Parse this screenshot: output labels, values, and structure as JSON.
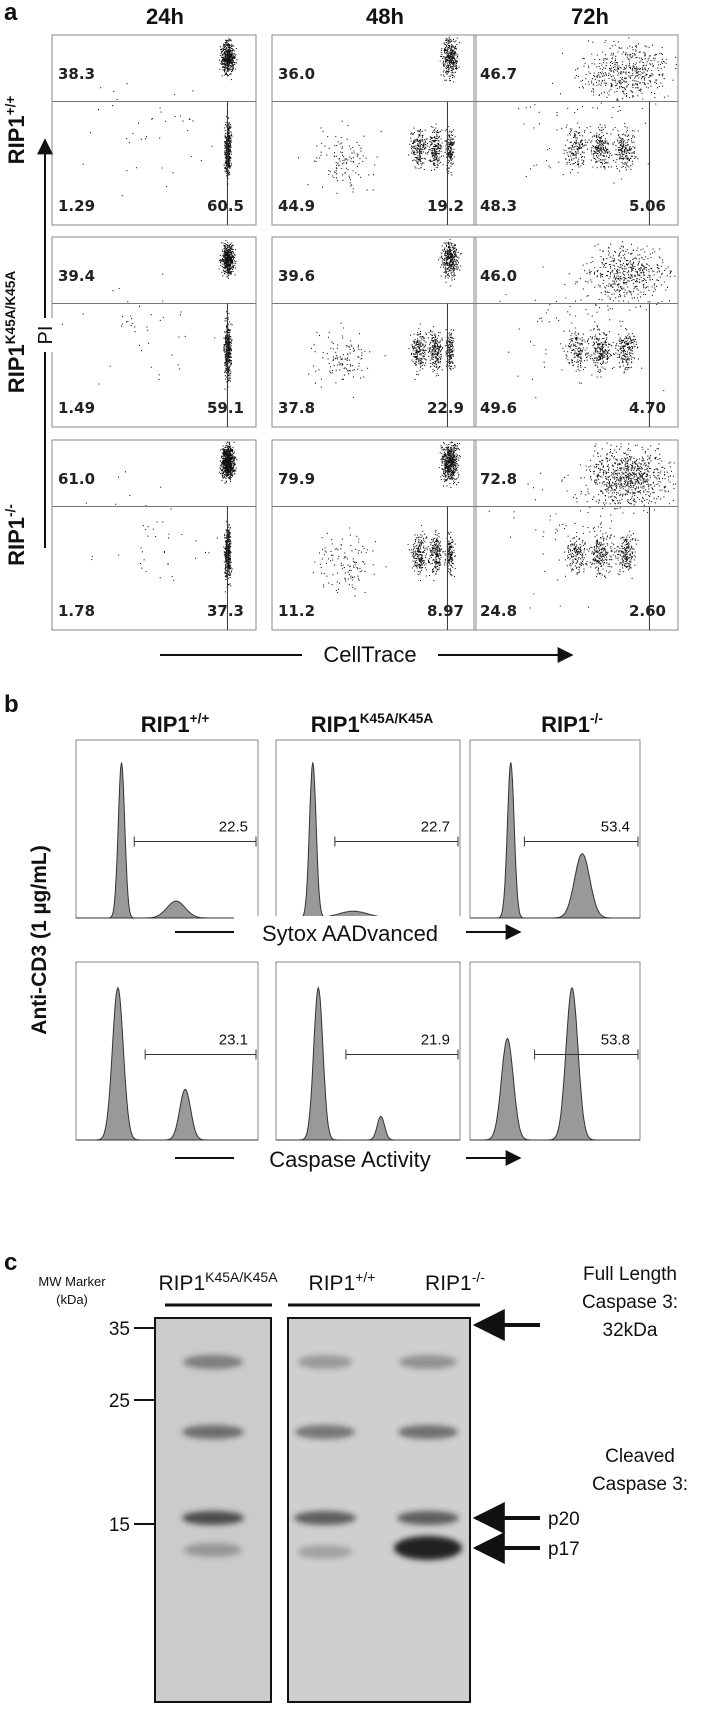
{
  "panel_a": {
    "label": "a",
    "columns": [
      "24h",
      "48h",
      "72h"
    ],
    "y_axis_label": "PI",
    "x_axis_label": "CellTrace",
    "rows": [
      {
        "label": "RIP1",
        "superscript": "+/+",
        "plots": [
          {
            "upper_left": "38.3",
            "lower_left": "1.29",
            "lower_right": "60.5"
          },
          {
            "upper_left": "36.0",
            "lower_left": "44.9",
            "lower_right": "19.2"
          },
          {
            "upper_left": "46.7",
            "lower_left": "48.3",
            "lower_right": "5.06"
          }
        ]
      },
      {
        "label": "RIP1",
        "superscript": "K45A/K45A",
        "plots": [
          {
            "upper_left": "39.4",
            "lower_left": "1.49",
            "lower_right": "59.1"
          },
          {
            "upper_left": "39.6",
            "lower_left": "37.8",
            "lower_right": "22.9"
          },
          {
            "upper_left": "46.0",
            "lower_left": "49.6",
            "lower_right": "4.70"
          }
        ]
      },
      {
        "label": "RIP1",
        "superscript": "-/-",
        "plots": [
          {
            "upper_left": "61.0",
            "lower_left": "1.78",
            "lower_right": "37.3"
          },
          {
            "upper_left": "79.9",
            "lower_left": "11.2",
            "lower_right": "8.97"
          },
          {
            "upper_left": "72.8",
            "lower_left": "24.8",
            "lower_right": "2.60"
          }
        ]
      }
    ]
  },
  "panel_b": {
    "label": "b",
    "columns": [
      {
        "label": "RIP1",
        "superscript": "+/+"
      },
      {
        "label": "RIP1",
        "superscript": "K45A/K45A"
      },
      {
        "label": "RIP1",
        "superscript": "-/-"
      }
    ],
    "y_axis_label": "Anti-CD3 (1 µg/mL)",
    "rows": [
      {
        "x_axis_label": "Sytox AADvanced",
        "gate_values": [
          "22.5",
          "22.7",
          "53.4"
        ]
      },
      {
        "x_axis_label": "Caspase Activity",
        "gate_values": [
          "23.1",
          "21.9",
          "53.8"
        ]
      }
    ]
  },
  "panel_c": {
    "label": "c",
    "marker_label": [
      "MW Marker",
      "(kDa)"
    ],
    "lanes": [
      {
        "label": "RIP1",
        "superscript": "K45A/K45A"
      },
      {
        "label": "RIP1",
        "superscript": "+/+"
      },
      {
        "label": "RIP1",
        "superscript": "-/-"
      }
    ],
    "markers": [
      "35",
      "25",
      "15"
    ],
    "full_length": [
      "Full Length",
      "Caspase 3:",
      "32kDa"
    ],
    "cleaved": [
      "Cleaved",
      "Caspase 3:"
    ],
    "fragments": [
      "p20",
      "p17"
    ]
  }
}
